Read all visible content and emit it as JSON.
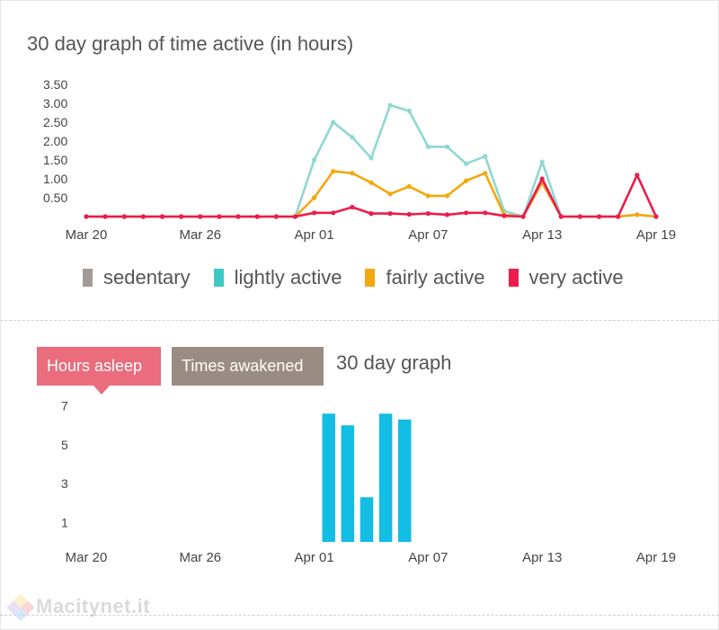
{
  "activity": {
    "title": "30 day graph of time active (in hours)",
    "legend": [
      {
        "label": "sedentary",
        "color": "#a39a94"
      },
      {
        "label": "lightly active",
        "color": "#3cc9c4"
      },
      {
        "label": "fairly active",
        "color": "#f5a70f"
      },
      {
        "label": "very active",
        "color": "#ec1c4c"
      }
    ]
  },
  "sleep": {
    "tabs": {
      "hours_asleep": "Hours asleep",
      "times_awakened": "Times awakened"
    },
    "title": "30 day graph"
  },
  "watermark": "Macitynet.it",
  "colors": {
    "bar": "#13bde4",
    "grid": "#e9e9e9"
  },
  "chart_data": [
    {
      "type": "line",
      "title": "30 day graph of time active (in hours)",
      "xlabel": "",
      "ylabel": "",
      "ylim": [
        0,
        3.5
      ],
      "yticks": [
        "0.50",
        "1.00",
        "1.50",
        "2.00",
        "2.50",
        "3.00",
        "3.50"
      ],
      "ytick_values": [
        0.5,
        1.0,
        1.5,
        2.0,
        2.5,
        3.0,
        3.5
      ],
      "xlim": [
        0,
        30
      ],
      "xticks": [
        {
          "label": "Mar 20",
          "x": 0
        },
        {
          "label": "Mar 26",
          "x": 6
        },
        {
          "label": "Apr 01",
          "x": 12
        },
        {
          "label": "Apr 07",
          "x": 18
        },
        {
          "label": "Apr 13",
          "x": 24
        },
        {
          "label": "Apr 19",
          "x": 30
        }
      ],
      "series": [
        {
          "name": "lightly active",
          "color": "#8fd8d2",
          "values": [
            0,
            0,
            0,
            0,
            0,
            0,
            0,
            0,
            0,
            0,
            0,
            0,
            1.5,
            2.5,
            2.1,
            1.55,
            2.95,
            2.8,
            1.85,
            1.85,
            1.4,
            1.6,
            0.15,
            0,
            1.45,
            0,
            0,
            0,
            0,
            0.05,
            0
          ]
        },
        {
          "name": "fairly active",
          "color": "#f5a70f",
          "values": [
            0,
            0,
            0,
            0,
            0,
            0,
            0,
            0,
            0,
            0,
            0,
            0,
            0.5,
            1.2,
            1.15,
            0.9,
            0.6,
            0.8,
            0.55,
            0.55,
            0.95,
            1.15,
            0.05,
            0,
            0.9,
            0,
            0,
            0,
            0,
            0.05,
            0
          ]
        },
        {
          "name": "very active",
          "color": "#ec1c4c",
          "values": [
            0,
            0,
            0,
            0,
            0,
            0,
            0,
            0,
            0,
            0,
            0,
            0,
            0.1,
            0.1,
            0.25,
            0.08,
            0.08,
            0.06,
            0.08,
            0.05,
            0.1,
            0.1,
            0.02,
            0,
            1.0,
            0,
            0,
            0,
            0,
            1.1,
            0
          ]
        }
      ]
    },
    {
      "type": "bar",
      "title": "30 day graph",
      "xlabel": "",
      "ylabel": "",
      "ylim": [
        0,
        8
      ],
      "yticks": [
        "1",
        "3",
        "5",
        "7"
      ],
      "ytick_values": [
        1,
        3,
        5,
        7
      ],
      "xlim": [
        0,
        30
      ],
      "xticks": [
        {
          "label": "Mar 20",
          "x": 0
        },
        {
          "label": "Mar 26",
          "x": 6
        },
        {
          "label": "Apr 01",
          "x": 12
        },
        {
          "label": "Apr 07",
          "x": 18
        },
        {
          "label": "Apr 13",
          "x": 24
        },
        {
          "label": "Apr 19",
          "x": 30
        }
      ],
      "bars": [
        {
          "x": 13,
          "value": 6.6
        },
        {
          "x": 14,
          "value": 6.0
        },
        {
          "x": 15,
          "value": 2.3
        },
        {
          "x": 16,
          "value": 6.6
        },
        {
          "x": 17,
          "value": 6.3
        }
      ]
    }
  ]
}
